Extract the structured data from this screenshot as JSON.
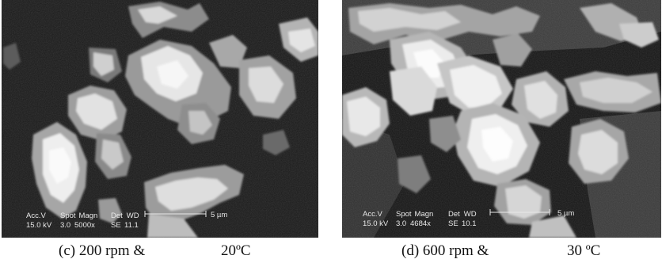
{
  "panels": [
    {
      "caption": {
        "prefix": "(c) 200 rpm &",
        "temperature": "20ºC"
      },
      "databar": {
        "row1": [
          "Acc.V",
          "Spot",
          "Magn",
          "Det",
          "WD"
        ],
        "row2": [
          "15.0 kV",
          "3.0",
          "5000x",
          "SE",
          "11.1"
        ],
        "scale_label": "5 µm"
      }
    },
    {
      "caption": {
        "prefix": "(d) 600 rpm &",
        "temperature": "30 ºC"
      },
      "databar": {
        "row1": [
          "Acc.V",
          "Spot",
          "Magn",
          "Det",
          "WD"
        ],
        "row2": [
          "15.0 kV",
          "3.0",
          "4684x",
          "SE",
          "10.1"
        ],
        "scale_label": "5 µm"
      }
    }
  ],
  "colors": {
    "background_c": "#1a1a1a",
    "background_d": "#161616",
    "particle_bright": "#efefef",
    "particle_mid": "#b9b9b9",
    "particle_shadow": "#767676",
    "caption_text": "#111111"
  }
}
